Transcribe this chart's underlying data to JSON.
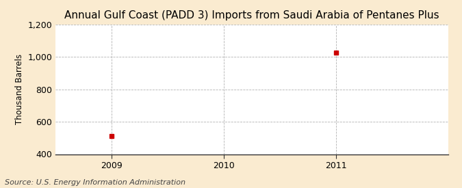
{
  "title": "Annual Gulf Coast (PADD 3) Imports from Saudi Arabia of Pentanes Plus",
  "ylabel": "Thousand Barrels",
  "source": "Source: U.S. Energy Information Administration",
  "x_values": [
    2009,
    2011
  ],
  "y_values": [
    513,
    1026
  ],
  "marker_color": "#cc0000",
  "marker_size": 4,
  "xlim": [
    2008.5,
    2012.0
  ],
  "ylim": [
    400,
    1200
  ],
  "yticks": [
    400,
    600,
    800,
    1000,
    1200
  ],
  "xticks": [
    2009,
    2010,
    2011
  ],
  "background_color": "#faebd0",
  "plot_bg_color": "#ffffff",
  "grid_color": "#aaaaaa",
  "title_fontsize": 11,
  "label_fontsize": 8.5,
  "tick_fontsize": 9,
  "source_fontsize": 8
}
